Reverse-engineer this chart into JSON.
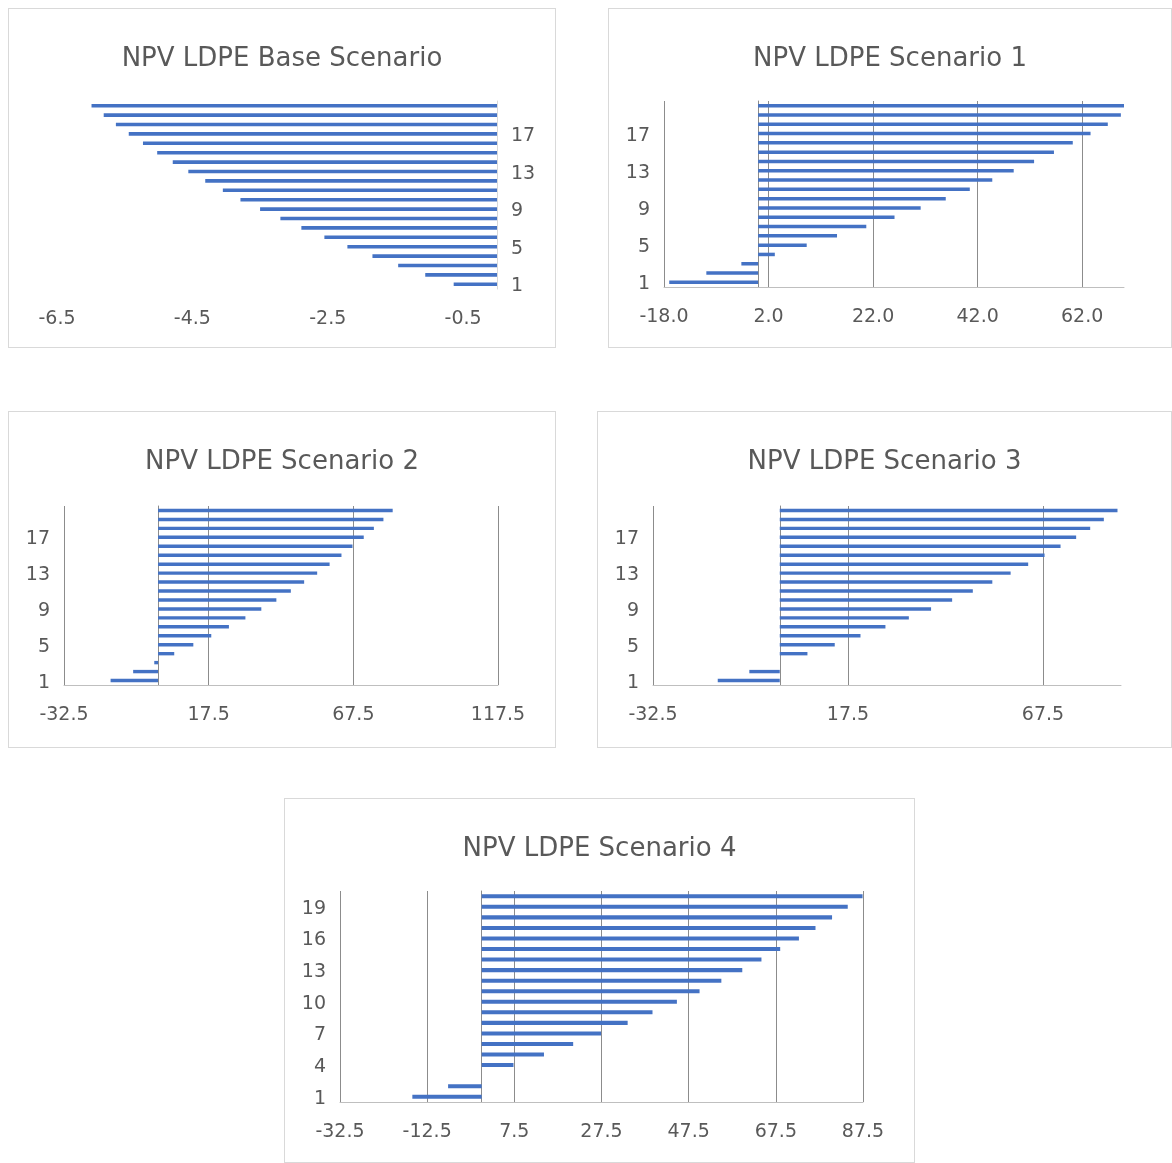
{
  "chart_data": [
    {
      "type": "bar",
      "orientation": "horizontal",
      "title": "NPV LDPE Base Scenario",
      "color": "#4472c4",
      "grid": false,
      "categories": [
        null,
        null,
        null,
        "17",
        null,
        null,
        null,
        "13",
        null,
        null,
        null,
        "9",
        null,
        null,
        null,
        "5",
        null,
        null,
        null,
        "1"
      ],
      "values": [
        -5.99,
        -5.81,
        -5.63,
        -5.44,
        -5.23,
        -5.02,
        -4.79,
        -4.56,
        -4.31,
        -4.05,
        -3.79,
        -3.5,
        -3.2,
        -2.89,
        -2.55,
        -2.21,
        -1.84,
        -1.46,
        -1.06,
        -0.64
      ],
      "xlim": [
        -6.5,
        0
      ],
      "xticks": [
        -6.5,
        -4.5,
        -2.5,
        -0.5
      ]
    },
    {
      "type": "bar",
      "orientation": "horizontal",
      "title": "NPV LDPE Scenario 1",
      "color": "#4472c4",
      "grid": "x",
      "categories": [
        null,
        null,
        null,
        "17",
        null,
        null,
        null,
        "13",
        null,
        null,
        null,
        "9",
        null,
        null,
        null,
        "5",
        null,
        null,
        null,
        "1"
      ],
      "values": [
        70.0,
        69.4,
        66.9,
        63.6,
        60.2,
        56.6,
        52.8,
        48.9,
        44.8,
        40.5,
        35.9,
        31.1,
        26.1,
        20.7,
        15.1,
        9.3,
        3.2,
        -3.2,
        -9.9,
        -17.0
      ],
      "xlim": [
        -18,
        70
      ],
      "xticks": [
        {
          "value": -18,
          "label": "-18.0"
        },
        {
          "value": 2,
          "label": "2.0"
        },
        {
          "value": 22,
          "label": "22.0"
        },
        {
          "value": 42,
          "label": "42.0"
        },
        {
          "value": 62,
          "label": "62.0"
        }
      ]
    },
    {
      "type": "bar",
      "orientation": "horizontal",
      "title": "NPV LDPE Scenario 2",
      "color": "#4472c4",
      "grid": "x",
      "categories": [
        null,
        null,
        null,
        "17",
        null,
        null,
        null,
        "13",
        null,
        null,
        null,
        "9",
        null,
        null,
        null,
        "5",
        null,
        null,
        null,
        "1"
      ],
      "values": [
        81.1,
        77.9,
        74.6,
        71.1,
        67.2,
        63.4,
        59.3,
        55.0,
        50.5,
        45.9,
        40.9,
        35.7,
        30.2,
        24.5,
        18.4,
        12.2,
        5.6,
        -1.3,
        -8.6,
        -16.4
      ],
      "xlim": [
        -32.5,
        117.5
      ],
      "xticks": [
        -32.5,
        17.5,
        67.5,
        117.5
      ]
    },
    {
      "type": "bar",
      "orientation": "horizontal",
      "title": "NPV LDPE Scenario 3",
      "color": "#4472c4",
      "grid": "x",
      "categories": [
        null,
        null,
        null,
        "17",
        null,
        null,
        null,
        "13",
        null,
        null,
        null,
        "9",
        null,
        null,
        null,
        "5",
        null,
        null,
        null,
        "1"
      ],
      "values": [
        86.6,
        83.1,
        79.6,
        76.0,
        72.0,
        67.9,
        63.7,
        59.2,
        54.5,
        49.5,
        44.2,
        38.8,
        33.1,
        27.1,
        20.7,
        14.1,
        7.1,
        0,
        -7.8,
        -15.9
      ],
      "xlim": [
        -32.5,
        87.5
      ],
      "xticks": [
        -32.5,
        17.5,
        67.5
      ]
    },
    {
      "type": "bar",
      "orientation": "horizontal",
      "title": "NPV LDPE Scenario 4",
      "color": "#4472c4",
      "grid": "x",
      "categories": [
        null,
        "19",
        null,
        null,
        "16",
        null,
        null,
        "13",
        null,
        null,
        "10",
        null,
        null,
        "7",
        null,
        null,
        "4",
        null,
        null,
        "1"
      ],
      "values": [
        87.4,
        84.0,
        80.4,
        76.6,
        72.8,
        68.5,
        64.2,
        59.8,
        55.0,
        50.0,
        44.8,
        39.2,
        33.5,
        27.4,
        21.0,
        14.3,
        7.3,
        0,
        -7.7,
        -15.9
      ],
      "xlim": [
        -32.5,
        87.5
      ],
      "xticks": [
        -32.5,
        -12.5,
        7.5,
        27.5,
        47.5,
        67.5,
        87.5
      ]
    }
  ]
}
